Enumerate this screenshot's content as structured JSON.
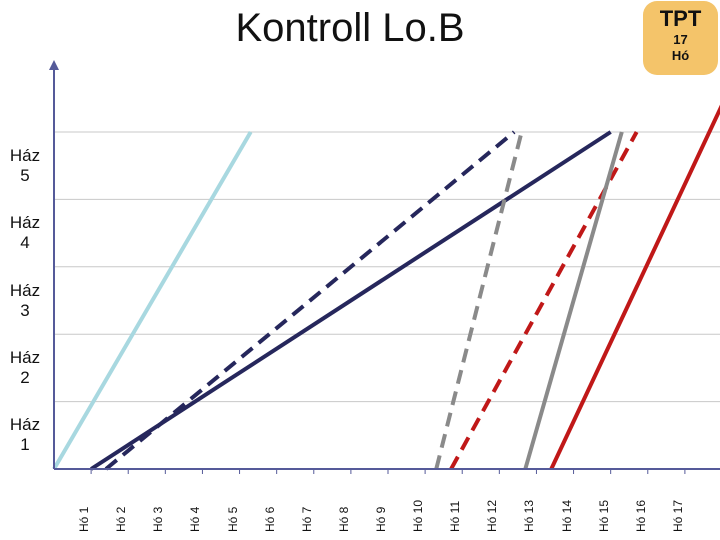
{
  "title": "Kontroll Lo.B",
  "badge": {
    "text": "TPT",
    "subtext_1": "17",
    "subtext_2": "Hó"
  },
  "colors": {
    "axis": "#555a99",
    "grid": "#c8c8c8",
    "light_blue": "#a8d8e0",
    "navy": "#26275c",
    "gray": "#8a8a8a",
    "red": "#c01818",
    "badge": "#f4c46a"
  },
  "chart_data": {
    "type": "line",
    "title": "Kontroll Lo.B",
    "x_categories": [
      "Hó 1",
      "Hó 2",
      "Hó 3",
      "Hó 4",
      "Hó 5",
      "Hó 6",
      "Hó 7",
      "Hó 8",
      "Hó 9",
      "Hó 10",
      "Hó 11",
      "Hó 12",
      "Hó 13",
      "Hó 14",
      "Hó 15",
      "Hó 16",
      "Hó 17"
    ],
    "y_categories": [
      {
        "line1": "Ház",
        "line2": "1"
      },
      {
        "line1": "Ház",
        "line2": "2"
      },
      {
        "line1": "Ház",
        "line2": "3"
      },
      {
        "line1": "Ház",
        "line2": "4"
      },
      {
        "line1": "Ház",
        "line2": "5"
      }
    ],
    "xlim": [
      0,
      18
    ],
    "ylim": [
      0,
      5
    ],
    "series": [
      {
        "name": "light-blue-solid",
        "color": "light_blue",
        "style": "solid",
        "points": [
          [
            0,
            0
          ],
          [
            5.3,
            5
          ]
        ]
      },
      {
        "name": "navy-dashed",
        "color": "navy",
        "style": "dashed",
        "points": [
          [
            1.4,
            0
          ],
          [
            12.4,
            5
          ]
        ]
      },
      {
        "name": "navy-solid",
        "color": "navy",
        "style": "solid",
        "points": [
          [
            1.0,
            0
          ],
          [
            15.0,
            5
          ]
        ]
      },
      {
        "name": "gray-dashed",
        "color": "gray",
        "style": "dashed",
        "points": [
          [
            10.3,
            0
          ],
          [
            12.6,
            5
          ]
        ]
      },
      {
        "name": "red-dashed",
        "color": "red",
        "style": "dashed",
        "points": [
          [
            10.7,
            0
          ],
          [
            15.7,
            5
          ]
        ]
      },
      {
        "name": "gray-solid",
        "color": "gray",
        "style": "solid",
        "points": [
          [
            12.7,
            0
          ],
          [
            15.3,
            5
          ]
        ]
      },
      {
        "name": "red-solid",
        "color": "red",
        "style": "solid",
        "points": [
          [
            13.4,
            0
          ],
          [
            18.0,
            5.4
          ]
        ]
      }
    ]
  }
}
